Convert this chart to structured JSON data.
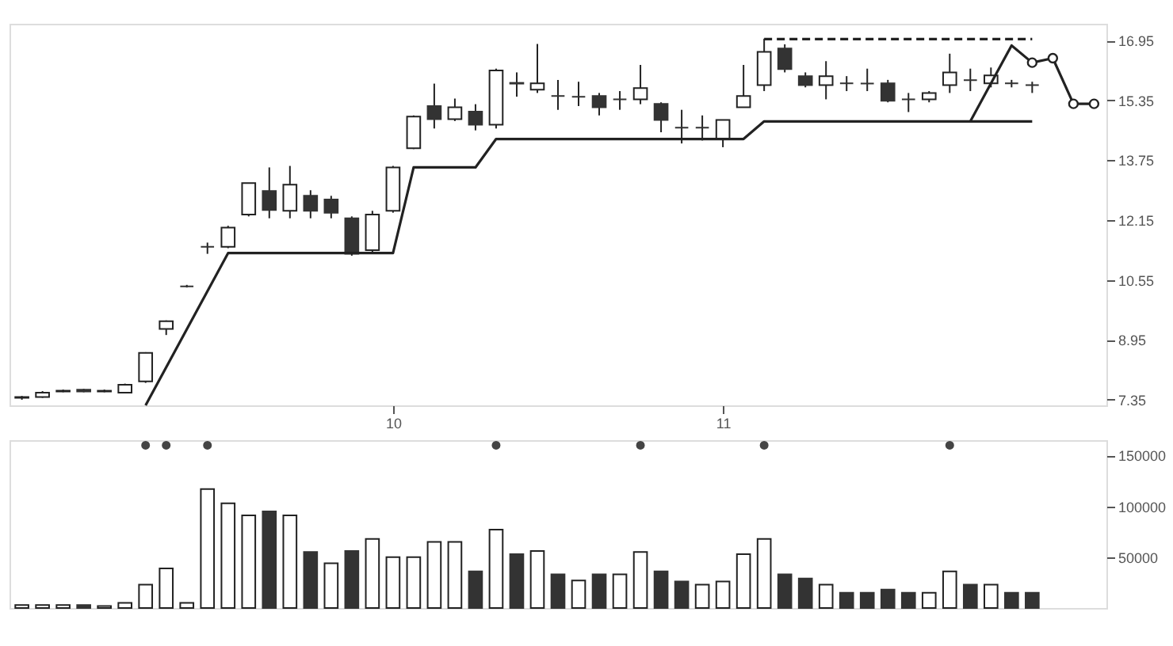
{
  "chart_data": [
    {
      "type": "candlestick",
      "categories": [
        null,
        null,
        null,
        null,
        null,
        null,
        null,
        null,
        null,
        null,
        null,
        null,
        null,
        null,
        null,
        null,
        null,
        null,
        "10",
        null,
        null,
        null,
        null,
        null,
        null,
        null,
        null,
        null,
        null,
        null,
        null,
        null,
        null,
        null,
        "11",
        null,
        null,
        null,
        null,
        null,
        null,
        null,
        null,
        null,
        null,
        null,
        null,
        null,
        null,
        null,
        null,
        null,
        null
      ],
      "ohlc": [
        [
          7.4,
          7.45,
          7.35,
          7.42
        ],
        [
          7.42,
          7.58,
          7.4,
          7.54
        ],
        [
          7.57,
          7.62,
          7.55,
          7.59
        ],
        [
          7.62,
          7.64,
          7.55,
          7.57
        ],
        [
          7.57,
          7.62,
          7.55,
          7.59
        ],
        [
          7.54,
          7.78,
          7.52,
          7.75
        ],
        [
          7.84,
          8.62,
          7.8,
          8.6
        ],
        [
          9.24,
          9.47,
          9.08,
          9.45
        ],
        [
          10.38,
          10.42,
          10.35,
          10.38
        ],
        [
          11.44,
          11.55,
          11.25,
          11.44
        ],
        [
          11.44,
          12.0,
          11.4,
          11.95
        ],
        [
          12.3,
          13.14,
          12.25,
          13.14
        ],
        [
          12.93,
          13.56,
          12.2,
          12.42
        ],
        [
          12.4,
          13.6,
          12.2,
          13.1
        ],
        [
          12.8,
          12.95,
          12.2,
          12.4
        ],
        [
          12.7,
          12.8,
          12.2,
          12.35
        ],
        [
          12.2,
          12.25,
          11.2,
          11.25
        ],
        [
          11.35,
          12.4,
          11.3,
          12.3
        ],
        [
          12.4,
          13.6,
          12.35,
          13.56
        ],
        [
          14.07,
          14.95,
          14.05,
          14.92
        ],
        [
          15.2,
          15.8,
          14.6,
          14.85
        ],
        [
          14.85,
          15.4,
          14.8,
          15.17
        ],
        [
          15.05,
          15.25,
          14.55,
          14.7
        ],
        [
          14.7,
          16.2,
          14.6,
          16.15
        ],
        [
          15.8,
          16.1,
          15.45,
          15.82
        ],
        [
          15.64,
          16.86,
          15.55,
          15.81
        ],
        [
          15.47,
          15.9,
          15.1,
          15.47
        ],
        [
          15.45,
          15.85,
          15.2,
          15.45
        ],
        [
          15.47,
          15.55,
          14.95,
          15.17
        ],
        [
          15.38,
          15.6,
          15.1,
          15.38
        ],
        [
          15.38,
          16.3,
          15.25,
          15.68
        ],
        [
          15.26,
          15.3,
          14.5,
          14.83
        ],
        [
          14.62,
          15.1,
          14.2,
          14.62
        ],
        [
          14.62,
          14.95,
          14.28,
          14.62
        ],
        [
          14.32,
          14.83,
          14.1,
          14.83
        ],
        [
          15.17,
          16.3,
          15.17,
          15.47
        ],
        [
          15.76,
          17.0,
          15.6,
          16.65
        ],
        [
          16.74,
          16.85,
          16.1,
          16.19
        ],
        [
          16.0,
          16.1,
          15.7,
          15.76
        ],
        [
          15.76,
          16.4,
          15.38,
          16.0
        ],
        [
          15.81,
          16.0,
          15.6,
          15.81
        ],
        [
          15.8,
          16.2,
          15.6,
          15.8
        ],
        [
          15.81,
          15.9,
          15.3,
          15.34
        ],
        [
          15.38,
          15.55,
          15.04,
          15.38
        ],
        [
          15.38,
          15.6,
          15.3,
          15.55
        ],
        [
          15.76,
          16.6,
          15.55,
          16.1
        ],
        [
          15.89,
          16.2,
          15.6,
          15.89
        ],
        [
          15.81,
          16.23,
          15.7,
          16.02
        ],
        [
          15.81,
          15.9,
          15.7,
          15.81
        ],
        [
          15.76,
          15.85,
          15.55,
          15.76
        ],
        null,
        null,
        null
      ],
      "colors": [
        "#ffffff",
        "#ffffff",
        "#ffffff",
        "#333333",
        "#ffffff",
        "#ffffff",
        "#ffffff",
        "#ffffff",
        "#333333",
        "#333333",
        "#ffffff",
        "#ffffff",
        "#333333",
        "#ffffff",
        "#333333",
        "#333333",
        "#333333",
        "#ffffff",
        "#ffffff",
        "#ffffff",
        "#333333",
        "#ffffff",
        "#333333",
        "#ffffff",
        "#333333",
        "#ffffff",
        "#333333",
        "#333333",
        "#333333",
        "#333333",
        "#ffffff",
        "#333333",
        "#333333",
        "#333333",
        "#ffffff",
        "#ffffff",
        "#ffffff",
        "#333333",
        "#333333",
        "#ffffff",
        "#333333",
        "#333333",
        "#333333",
        "#333333",
        "#ffffff",
        "#ffffff",
        "#333333",
        "#ffffff",
        "#333333",
        "#333333",
        null,
        null,
        null
      ],
      "ylim": [
        7.2,
        17.4
      ],
      "yticks": [
        7.35,
        8.95,
        10.55,
        12.15,
        13.75,
        15.35,
        16.95
      ],
      "grid": false,
      "series": [
        {
          "type": "line",
          "color": "#222222",
          "marker": "none",
          "line_style": "solid",
          "values": [
            null,
            null,
            null,
            null,
            null,
            null,
            7.2,
            null,
            null,
            null,
            11.27,
            null,
            null,
            null,
            null,
            null,
            null,
            null,
            11.27,
            13.56,
            null,
            null,
            13.56,
            14.32,
            null,
            null,
            null,
            null,
            null,
            null,
            null,
            null,
            null,
            null,
            null,
            14.32,
            14.79,
            null,
            null,
            null,
            null,
            null,
            null,
            null,
            null,
            null,
            null,
            null,
            null,
            14.79,
            null,
            null,
            null
          ]
        },
        {
          "type": "line",
          "color": "#222222",
          "marker": "none",
          "line_style": "solid",
          "values": [
            null,
            null,
            null,
            null,
            null,
            null,
            null,
            null,
            null,
            null,
            null,
            null,
            null,
            null,
            null,
            null,
            null,
            null,
            null,
            null,
            null,
            null,
            null,
            null,
            null,
            null,
            null,
            null,
            null,
            null,
            null,
            null,
            null,
            null,
            null,
            null,
            null,
            null,
            null,
            null,
            null,
            null,
            null,
            null,
            null,
            null,
            14.79,
            null,
            16.82,
            16.36,
            null,
            null,
            null
          ]
        },
        {
          "type": "line",
          "color": "#222222",
          "marker": "circle",
          "line_style": "solid",
          "values": [
            null,
            null,
            null,
            null,
            null,
            null,
            null,
            null,
            null,
            null,
            null,
            null,
            null,
            null,
            null,
            null,
            null,
            null,
            null,
            null,
            null,
            null,
            null,
            null,
            null,
            null,
            null,
            null,
            null,
            null,
            null,
            null,
            null,
            null,
            null,
            null,
            null,
            null,
            null,
            null,
            null,
            null,
            null,
            null,
            null,
            null,
            null,
            null,
            null,
            16.36,
            16.48,
            15.26,
            15.26
          ]
        },
        {
          "type": "line",
          "color": "#222222",
          "marker": "none",
          "line_style": "dashed",
          "values": [
            null,
            null,
            null,
            null,
            null,
            null,
            null,
            null,
            null,
            null,
            null,
            null,
            null,
            null,
            null,
            null,
            null,
            null,
            null,
            null,
            null,
            null,
            null,
            null,
            null,
            null,
            null,
            null,
            null,
            null,
            null,
            null,
            null,
            null,
            null,
            null,
            16.99,
            null,
            null,
            null,
            null,
            null,
            null,
            null,
            null,
            null,
            null,
            null,
            null,
            16.99,
            null,
            null,
            null
          ]
        }
      ]
    },
    {
      "type": "bar",
      "categories": [
        null,
        null,
        null,
        null,
        null,
        null,
        null,
        null,
        null,
        null,
        null,
        null,
        null,
        null,
        null,
        null,
        null,
        null,
        null,
        null,
        null,
        null,
        null,
        null,
        null,
        null,
        null,
        null,
        null,
        null,
        null,
        null,
        null,
        null,
        null,
        null,
        null,
        null,
        null,
        null,
        null,
        null,
        null,
        null,
        null,
        null,
        null,
        null,
        null,
        null,
        null,
        null,
        null
      ],
      "ylim": [
        0,
        165000
      ],
      "yticks": [
        50000,
        100000,
        150000
      ],
      "tick_labels": "y",
      "grid": false,
      "series": [
        {
          "type": "bar",
          "values": [
            3000,
            3000,
            3000,
            3000,
            2000,
            5000,
            23000,
            39000,
            5000,
            117000,
            103000,
            91000,
            95000,
            91000,
            55000,
            44000,
            56000,
            68000,
            50000,
            50000,
            65000,
            65000,
            36000,
            77000,
            53000,
            56000,
            33000,
            27000,
            33000,
            33000,
            55000,
            36000,
            26000,
            23000,
            26000,
            53000,
            68000,
            33000,
            29000,
            23000,
            15000,
            15000,
            18000,
            15000,
            15000,
            36000,
            23000,
            23000,
            15000,
            15000,
            null,
            null,
            null
          ],
          "colors": [
            "#ffffff",
            "#ffffff",
            "#ffffff",
            "#333333",
            "#ffffff",
            "#ffffff",
            "#ffffff",
            "#ffffff",
            "#ffffff",
            "#ffffff",
            "#ffffff",
            "#ffffff",
            "#333333",
            "#ffffff",
            "#333333",
            "#ffffff",
            "#333333",
            "#ffffff",
            "#ffffff",
            "#ffffff",
            "#ffffff",
            "#ffffff",
            "#333333",
            "#ffffff",
            "#333333",
            "#ffffff",
            "#333333",
            "#ffffff",
            "#333333",
            "#ffffff",
            "#ffffff",
            "#333333",
            "#333333",
            "#ffffff",
            "#ffffff",
            "#ffffff",
            "#ffffff",
            "#333333",
            "#333333",
            "#ffffff",
            "#333333",
            "#333333",
            "#333333",
            "#333333",
            "#ffffff",
            "#ffffff",
            "#333333",
            "#ffffff",
            "#333333",
            "#333333",
            null,
            null,
            null
          ]
        },
        {
          "type": "scatter",
          "color": "#444444",
          "marker": "circle",
          "values": [
            null,
            null,
            null,
            null,
            null,
            null,
            160000,
            160000,
            null,
            160000,
            null,
            null,
            null,
            null,
            null,
            null,
            null,
            null,
            null,
            null,
            null,
            null,
            null,
            160000,
            null,
            null,
            null,
            null,
            null,
            null,
            160000,
            null,
            null,
            null,
            null,
            null,
            160000,
            null,
            null,
            null,
            null,
            null,
            null,
            null,
            null,
            160000,
            null,
            null,
            null,
            null,
            null,
            null,
            null
          ]
        }
      ]
    }
  ]
}
